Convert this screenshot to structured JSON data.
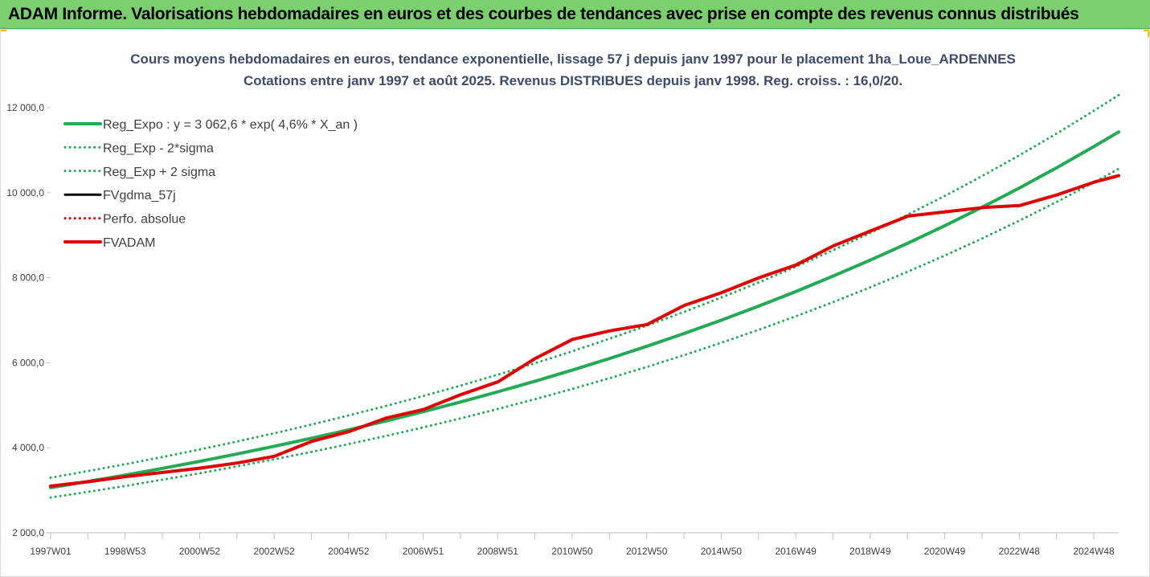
{
  "banner": {
    "title": "ADAM Informe. Valorisations hebdomadaires en euros et des courbes de tendances avec prise en compte des revenus connus distribués",
    "background_color": "#7ccf6f",
    "accent_color": "#f2c300"
  },
  "chart_data": {
    "type": "line",
    "title": "Cours moyens hebdomadaires en euros, tendance exponentielle, lissage 57 j depuis janv 1997 pour le placement 1ha_Loue_ARDENNES",
    "subtitle": "Cotations entre janv 1997 et août 2025. Revenus DISTRIBUES depuis janv 1998. Reg. croiss. : 16,0/20.",
    "xlabel": "",
    "ylabel": "",
    "x_tick_labels": [
      "1997W01",
      "1998W53",
      "2000W52",
      "2002W52",
      "2004W52",
      "2006W51",
      "2008W51",
      "2010W50",
      "2012W50",
      "2014W50",
      "2016W49",
      "2018W49",
      "2020W49",
      "2022W48",
      "2024W48"
    ],
    "x_range": [
      1997.0,
      2025.65
    ],
    "y_ticks": [
      2000,
      4000,
      6000,
      8000,
      10000,
      12000
    ],
    "y_tick_labels": [
      "2 000,0",
      "4 000,0",
      "6 000,0",
      "8 000,0",
      "10 000,0",
      "12 000,0"
    ],
    "ylim": [
      2000,
      12000
    ],
    "grid": false,
    "legend_position": "top-left",
    "x": [
      1997.0,
      1998.0,
      1999.0,
      2000.0,
      2001.0,
      2002.0,
      2003.0,
      2004.0,
      2005.0,
      2006.0,
      2007.0,
      2008.0,
      2009.0,
      2010.0,
      2011.0,
      2012.0,
      2013.0,
      2014.0,
      2015.0,
      2016.0,
      2017.0,
      2018.0,
      2019.0,
      2020.0,
      2021.0,
      2022.0,
      2023.0,
      2024.0,
      2025.0,
      2025.65
    ],
    "series": [
      {
        "name": "Reg_Expo : y = 3 062,6 * exp( 4,6% *  X_an )",
        "color": "#22aa55",
        "style": "solid",
        "width": 4,
        "values": [
          3063,
          3207,
          3358,
          3516,
          3681,
          3854,
          4035,
          4225,
          4424,
          4632,
          4850,
          5078,
          5317,
          5567,
          5829,
          6103,
          6390,
          6690,
          7005,
          7334,
          7679,
          8041,
          8419,
          8815,
          9229,
          9663,
          10118,
          10594,
          11092,
          11430
        ]
      },
      {
        "name": "Reg_Exp - 2*sigma",
        "color": "#22aa55",
        "style": "dotted",
        "width": 3,
        "values": [
          2830,
          2963,
          3103,
          3249,
          3401,
          3561,
          3729,
          3904,
          4088,
          4280,
          4481,
          4692,
          4913,
          5144,
          5386,
          5639,
          5904,
          6182,
          6473,
          6777,
          7096,
          7430,
          7779,
          8145,
          8528,
          8929,
          9349,
          9789,
          10249,
          10562
        ]
      },
      {
        "name": "Reg_Exp + 2 sigma",
        "color": "#22aa55",
        "style": "dotted",
        "width": 3,
        "values": [
          3296,
          3451,
          3613,
          3783,
          3961,
          4147,
          4342,
          4547,
          4761,
          4984,
          5219,
          5464,
          5721,
          5991,
          6272,
          6567,
          6876,
          7199,
          7538,
          7892,
          8263,
          8652,
          9059,
          9485,
          9931,
          10398,
          10887,
          11399,
          11936,
          12297
        ]
      },
      {
        "name": "FVgdma_57j",
        "color": "#000000",
        "style": "solid",
        "width": 3,
        "values": [
          3100,
          3200,
          3320,
          3420,
          3520,
          3640,
          3800,
          4150,
          4380,
          4700,
          4900,
          5250,
          5550,
          6100,
          6550,
          6750,
          6900,
          7350,
          7650,
          8000,
          8300,
          8750,
          9100,
          9450,
          9550,
          9650,
          9700,
          9950,
          10250,
          10400
        ]
      },
      {
        "name": "Perfo. absolue",
        "color": "#e00000",
        "style": "dotted",
        "width": 3,
        "values": [
          3100,
          3200,
          3320,
          3420,
          3520,
          3640,
          3800,
          4150,
          4380,
          4700,
          4900,
          5250,
          5550,
          6100,
          6550,
          6750,
          6900,
          7350,
          7650,
          8000,
          8300,
          8750,
          9100,
          9450,
          9550,
          9650,
          9700,
          9950,
          10250,
          10400
        ]
      },
      {
        "name": "FVADAM",
        "color": "#e00000",
        "style": "solid",
        "width": 4,
        "values": [
          3100,
          3200,
          3320,
          3420,
          3520,
          3640,
          3800,
          4150,
          4380,
          4700,
          4900,
          5250,
          5550,
          6100,
          6550,
          6750,
          6900,
          7350,
          7650,
          8000,
          8300,
          8750,
          9100,
          9450,
          9550,
          9650,
          9700,
          9950,
          10250,
          10400
        ]
      }
    ]
  }
}
